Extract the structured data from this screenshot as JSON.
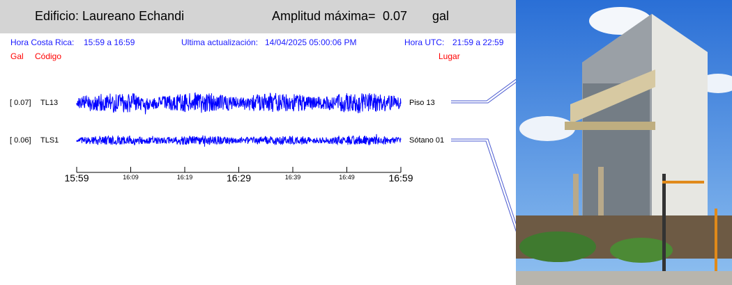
{
  "header": {
    "building_label": "Edificio:",
    "building_name": "Laureano Echandi",
    "amplitude_label": "Amplitud máxima=",
    "amplitude_value": "0.07",
    "amplitude_unit": "gal"
  },
  "info": {
    "cr_label": "Hora Costa Rica:",
    "cr_range": "15:59 a 16:59",
    "update_label": "Ultima actualización:",
    "update_value": "14/04/2025 05:00:06 PM",
    "utc_label": "Hora UTC:",
    "utc_range": "21:59 a 22:59"
  },
  "columns": {
    "gal": "Gal",
    "code": "Código",
    "place": "Lugar"
  },
  "channels": [
    {
      "gal": "[   0.07]",
      "code": "TL13",
      "place": "Piso 13",
      "amplitude": 0.07
    },
    {
      "gal": "[   0.06]",
      "code": "TLS1",
      "place": "Sótano 01",
      "amplitude": 0.06
    }
  ],
  "time_axis": {
    "ticks": [
      "15:59",
      "16:09",
      "16:19",
      "16:29",
      "16:39",
      "16:49",
      "16:59"
    ],
    "major": [
      true,
      false,
      false,
      true,
      false,
      false,
      true
    ]
  },
  "colors": {
    "trace": "#0000ff",
    "header_bg": "#d4d4d4",
    "info_text": "#1a1aff",
    "label_red": "#ff0000"
  }
}
